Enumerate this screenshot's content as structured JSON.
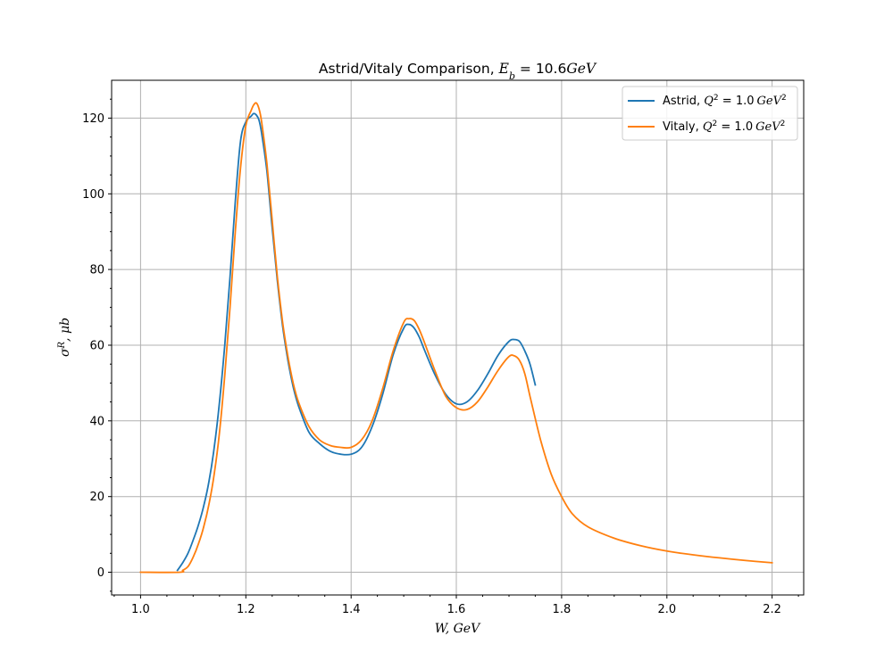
{
  "chart_data": {
    "type": "line",
    "title": {
      "prefix": "Astrid/Vitaly Comparison, ",
      "math_var": "E",
      "math_sub": "b",
      "math_value": " = 10.6",
      "math_unit": "GeV"
    },
    "xlabel": "W, GeV",
    "ylabel": {
      "symbol": "σ",
      "sup": "R",
      "rest": ", μb"
    },
    "xlim": [
      0.945,
      2.26
    ],
    "ylim": [
      -6,
      130
    ],
    "xticks": [
      1.0,
      1.2,
      1.4,
      1.6,
      1.8,
      2.0,
      2.2
    ],
    "xtick_labels": [
      "1.0",
      "1.2",
      "1.4",
      "1.6",
      "1.8",
      "2.0",
      "2.2"
    ],
    "yticks": [
      0,
      20,
      40,
      60,
      80,
      100,
      120
    ],
    "ytick_labels": [
      "0",
      "20",
      "40",
      "60",
      "80",
      "100",
      "120"
    ],
    "grid": true,
    "legend_position": "top-right",
    "series": [
      {
        "name": "Astrid",
        "label_math": {
          "var": "Q",
          "sup": "2",
          "value": " = 1.0",
          "unit": "GeV",
          "unit_sup": "2"
        },
        "color": "#1f77b4",
        "x": [
          1.07,
          1.08,
          1.09,
          1.1,
          1.11,
          1.12,
          1.13,
          1.14,
          1.15,
          1.16,
          1.17,
          1.18,
          1.19,
          1.2,
          1.21,
          1.215,
          1.22,
          1.225,
          1.23,
          1.24,
          1.25,
          1.26,
          1.27,
          1.28,
          1.29,
          1.3,
          1.32,
          1.34,
          1.36,
          1.38,
          1.4,
          1.42,
          1.44,
          1.46,
          1.48,
          1.5,
          1.51,
          1.52,
          1.53,
          1.54,
          1.56,
          1.58,
          1.6,
          1.62,
          1.64,
          1.66,
          1.68,
          1.7,
          1.71,
          1.72,
          1.73,
          1.74,
          1.75
        ],
        "y": [
          0.5,
          2.5,
          5,
          8.5,
          12.5,
          17.5,
          24,
          33,
          45,
          60,
          78,
          98,
          114,
          119,
          120.5,
          121.2,
          120.8,
          119.5,
          116,
          106,
          91,
          77,
          65,
          56,
          49,
          44,
          37,
          34,
          32,
          31.2,
          31.2,
          33,
          38.5,
          47,
          57.5,
          64.5,
          65.5,
          64.5,
          62,
          58.5,
          52,
          47,
          44.5,
          45,
          48,
          52.5,
          57.5,
          61,
          61.5,
          61,
          58.5,
          55,
          49.5
        ]
      },
      {
        "name": "Vitaly",
        "label_math": {
          "var": "Q",
          "sup": "2",
          "value": " = 1.0",
          "unit": "GeV",
          "unit_sup": "2"
        },
        "color": "#ff7f0e",
        "x": [
          1.0,
          1.075,
          1.08,
          1.09,
          1.1,
          1.11,
          1.12,
          1.13,
          1.14,
          1.15,
          1.16,
          1.17,
          1.18,
          1.19,
          1.2,
          1.21,
          1.215,
          1.22,
          1.225,
          1.23,
          1.24,
          1.25,
          1.26,
          1.27,
          1.28,
          1.29,
          1.3,
          1.32,
          1.34,
          1.36,
          1.38,
          1.4,
          1.42,
          1.44,
          1.46,
          1.48,
          1.5,
          1.51,
          1.52,
          1.53,
          1.54,
          1.56,
          1.58,
          1.6,
          1.62,
          1.64,
          1.66,
          1.68,
          1.7,
          1.71,
          1.72,
          1.73,
          1.74,
          1.76,
          1.78,
          1.8,
          1.82,
          1.85,
          1.9,
          1.95,
          2.0,
          2.05,
          2.1,
          2.15,
          2.2
        ],
        "y": [
          0,
          0,
          0.5,
          1.5,
          4,
          7.5,
          12,
          18,
          26,
          37,
          52,
          70,
          90,
          107,
          118,
          122,
          123.5,
          124,
          122.5,
          119,
          108,
          93,
          78,
          66,
          57,
          50,
          45,
          38.5,
          35,
          33.5,
          33,
          33,
          35,
          40,
          48.5,
          58.5,
          66,
          67,
          66.5,
          64,
          60.5,
          53,
          46.5,
          43.5,
          43,
          45,
          49,
          53.5,
          57,
          57.2,
          56,
          52.5,
          46.5,
          35,
          26,
          20,
          15.5,
          12,
          9,
          7,
          5.6,
          4.6,
          3.8,
          3.1,
          2.5
        ]
      }
    ]
  }
}
